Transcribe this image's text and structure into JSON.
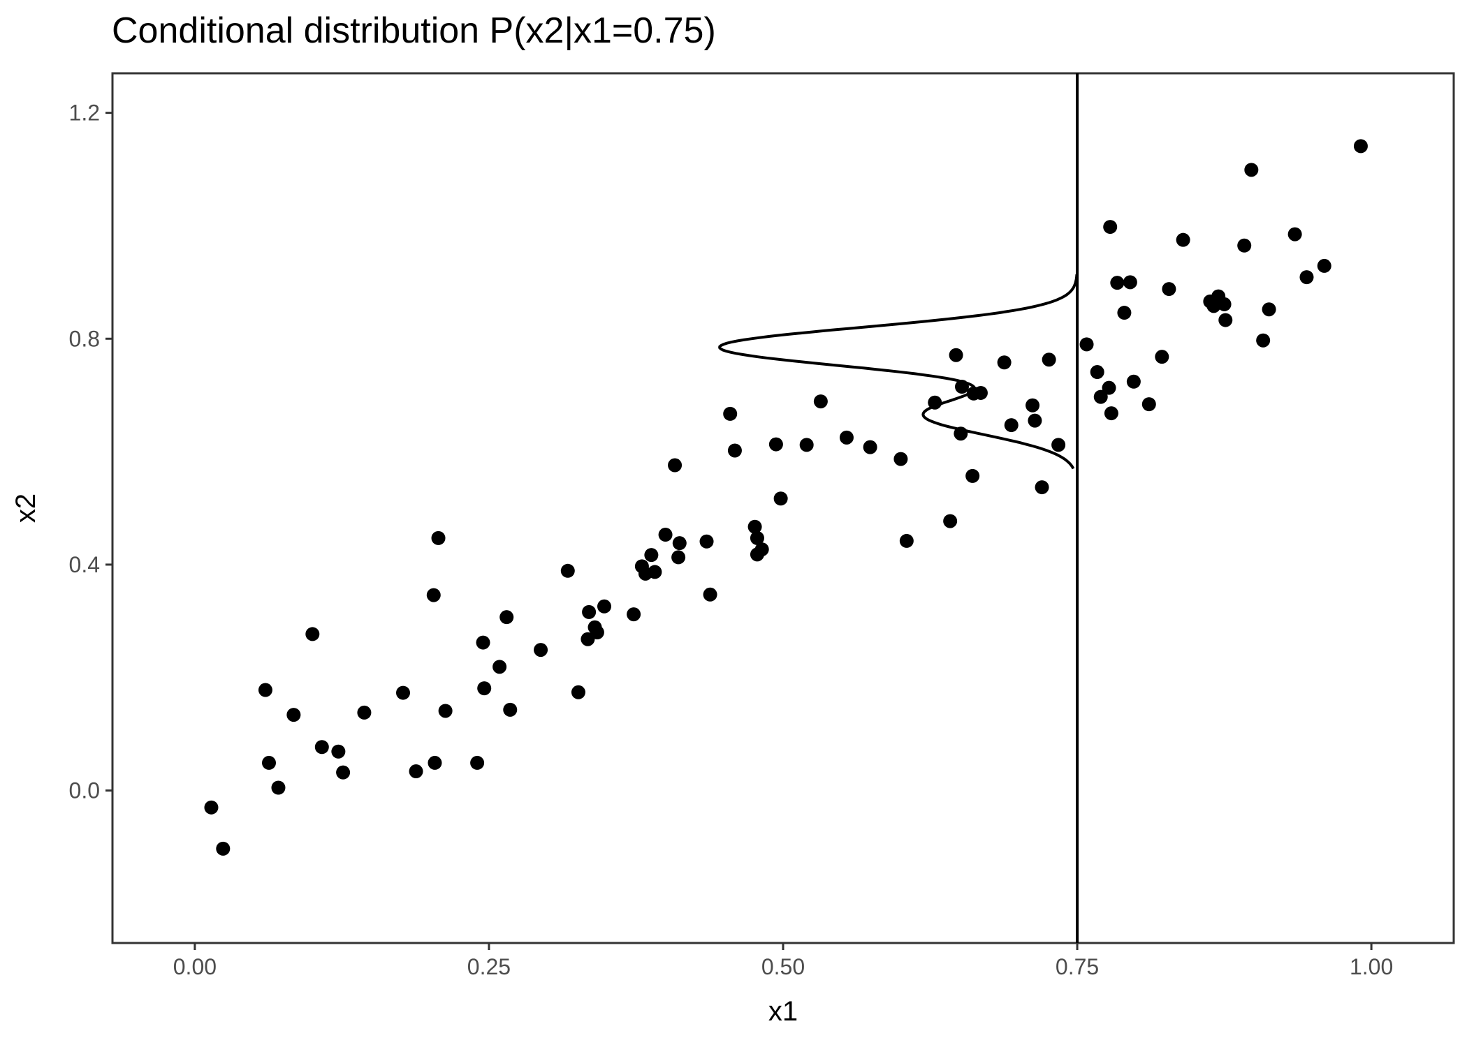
{
  "chart_data": {
    "type": "scatter",
    "title": "Conditional distribution P(x2|x1=0.75)",
    "xlabel": "x1",
    "ylabel": "x2",
    "xlim": [
      -0.07,
      1.07
    ],
    "ylim": [
      -0.27,
      1.27
    ],
    "x_ticks": [
      0.0,
      0.25,
      0.5,
      0.75,
      1.0
    ],
    "x_tick_labels": [
      "0.00",
      "0.25",
      "0.50",
      "0.75",
      "1.00"
    ],
    "y_ticks": [
      0.0,
      0.4,
      0.8,
      1.2
    ],
    "y_tick_labels": [
      "0.0",
      "0.4",
      "0.8",
      "1.2"
    ],
    "grid": false,
    "vertical_line_x": 0.75,
    "conditional_density": {
      "x_base": 0.75,
      "components": [
        {
          "mean": 0.785,
          "sd": 0.035,
          "weight": 0.7
        },
        {
          "mean": 0.665,
          "sd": 0.035,
          "weight": 0.3
        }
      ],
      "y_range": [
        0.57,
        0.915
      ],
      "peak_x": 0.446
    },
    "points": [
      [
        0.014,
        -0.03
      ],
      [
        0.024,
        -0.103
      ],
      [
        0.06,
        0.178
      ],
      [
        0.063,
        0.049
      ],
      [
        0.071,
        0.005
      ],
      [
        0.084,
        0.134
      ],
      [
        0.1,
        0.277
      ],
      [
        0.108,
        0.077
      ],
      [
        0.122,
        0.069
      ],
      [
        0.126,
        0.032
      ],
      [
        0.144,
        0.138
      ],
      [
        0.177,
        0.173
      ],
      [
        0.188,
        0.034
      ],
      [
        0.203,
        0.346
      ],
      [
        0.204,
        0.049
      ],
      [
        0.207,
        0.447
      ],
      [
        0.213,
        0.141
      ],
      [
        0.24,
        0.049
      ],
      [
        0.245,
        0.262
      ],
      [
        0.246,
        0.181
      ],
      [
        0.259,
        0.219
      ],
      [
        0.265,
        0.307
      ],
      [
        0.268,
        0.143
      ],
      [
        0.294,
        0.249
      ],
      [
        0.317,
        0.389
      ],
      [
        0.326,
        0.174
      ],
      [
        0.334,
        0.268
      ],
      [
        0.335,
        0.316
      ],
      [
        0.34,
        0.289
      ],
      [
        0.342,
        0.28
      ],
      [
        0.348,
        0.326
      ],
      [
        0.373,
        0.312
      ],
      [
        0.38,
        0.397
      ],
      [
        0.383,
        0.384
      ],
      [
        0.388,
        0.417
      ],
      [
        0.391,
        0.387
      ],
      [
        0.4,
        0.453
      ],
      [
        0.408,
        0.576
      ],
      [
        0.411,
        0.413
      ],
      [
        0.412,
        0.438
      ],
      [
        0.435,
        0.441
      ],
      [
        0.438,
        0.347
      ],
      [
        0.455,
        0.667
      ],
      [
        0.459,
        0.602
      ],
      [
        0.476,
        0.467
      ],
      [
        0.478,
        0.418
      ],
      [
        0.478,
        0.447
      ],
      [
        0.482,
        0.427
      ],
      [
        0.494,
        0.613
      ],
      [
        0.498,
        0.517
      ],
      [
        0.52,
        0.612
      ],
      [
        0.532,
        0.689
      ],
      [
        0.554,
        0.625
      ],
      [
        0.574,
        0.608
      ],
      [
        0.6,
        0.587
      ],
      [
        0.605,
        0.442
      ],
      [
        0.629,
        0.687
      ],
      [
        0.642,
        0.477
      ],
      [
        0.647,
        0.771
      ],
      [
        0.651,
        0.632
      ],
      [
        0.652,
        0.715
      ],
      [
        0.661,
        0.557
      ],
      [
        0.662,
        0.703
      ],
      [
        0.668,
        0.704
      ],
      [
        0.688,
        0.758
      ],
      [
        0.694,
        0.647
      ],
      [
        0.712,
        0.682
      ],
      [
        0.714,
        0.655
      ],
      [
        0.72,
        0.537
      ],
      [
        0.726,
        0.763
      ],
      [
        0.734,
        0.612
      ],
      [
        0.758,
        0.79
      ],
      [
        0.767,
        0.741
      ],
      [
        0.77,
        0.697
      ],
      [
        0.777,
        0.713
      ],
      [
        0.778,
        0.998
      ],
      [
        0.779,
        0.668
      ],
      [
        0.784,
        0.899
      ],
      [
        0.79,
        0.846
      ],
      [
        0.795,
        0.9
      ],
      [
        0.798,
        0.724
      ],
      [
        0.811,
        0.684
      ],
      [
        0.822,
        0.768
      ],
      [
        0.828,
        0.888
      ],
      [
        0.84,
        0.975
      ],
      [
        0.863,
        0.866
      ],
      [
        0.866,
        0.858
      ],
      [
        0.87,
        0.875
      ],
      [
        0.875,
        0.861
      ],
      [
        0.876,
        0.833
      ],
      [
        0.892,
        0.965
      ],
      [
        0.898,
        1.099
      ],
      [
        0.908,
        0.797
      ],
      [
        0.913,
        0.852
      ],
      [
        0.935,
        0.985
      ],
      [
        0.945,
        0.909
      ],
      [
        0.96,
        0.929
      ],
      [
        0.991,
        1.141
      ]
    ]
  }
}
